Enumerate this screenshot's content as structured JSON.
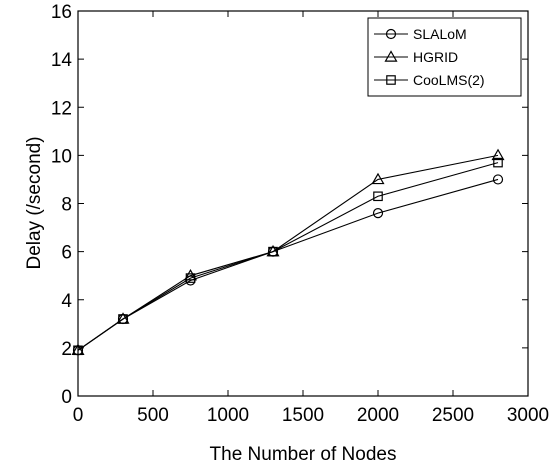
{
  "chart_data": {
    "type": "line",
    "title": "",
    "xlabel": "The Number of Nodes",
    "ylabel": "Delay (/second)",
    "xlim": [
      0,
      3000
    ],
    "ylim": [
      0,
      16
    ],
    "xticks": [
      "0",
      "500",
      "1000",
      "1500",
      "2000",
      "2500",
      "3000"
    ],
    "yticks": [
      "0",
      "2",
      "4",
      "6",
      "8",
      "10",
      "12",
      "14",
      "16"
    ],
    "grid": false,
    "legend_position": "top-right",
    "x": [
      0,
      300,
      750,
      1300,
      2000,
      2800
    ],
    "series": [
      {
        "name": "SLALoM",
        "marker": "circle",
        "values": [
          1.9,
          3.2,
          4.8,
          6.0,
          7.6,
          9.0
        ]
      },
      {
        "name": "HGRID",
        "marker": "triangle",
        "values": [
          1.9,
          3.2,
          5.0,
          6.0,
          9.0,
          10.0
        ]
      },
      {
        "name": "CooLMS(2)",
        "marker": "square",
        "values": [
          1.9,
          3.2,
          4.9,
          6.0,
          8.3,
          9.7
        ]
      }
    ],
    "colors": {
      "line": "#000000",
      "background": "#ffffff"
    }
  }
}
